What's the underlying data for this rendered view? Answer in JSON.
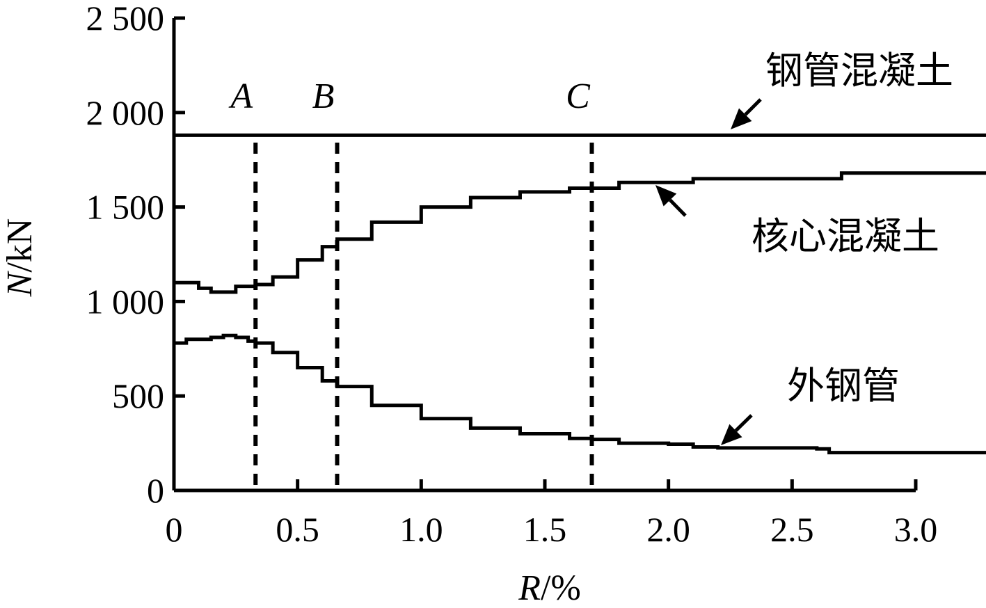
{
  "chart_data": {
    "type": "line",
    "xlabel": "R/%",
    "xlabel_italic": "R",
    "xlabel_rest": "/%",
    "ylabel": "N/kN",
    "ylabel_italic": "N",
    "ylabel_rest": "/kN",
    "xlim": [
      0,
      3.0
    ],
    "ylim": [
      0,
      2500
    ],
    "x_ticks": [
      0,
      0.5,
      1.0,
      1.5,
      2.0,
      2.5,
      3.0
    ],
    "x_tick_labels": [
      "0",
      "0.5",
      "1.0",
      "1.5",
      "2.0",
      "2.5",
      "3.0"
    ],
    "y_ticks": [
      0,
      500,
      1000,
      1500,
      2000,
      2500
    ],
    "y_tick_labels": [
      "0",
      "500",
      "1 000",
      "1 500",
      "2 000",
      "2 500"
    ],
    "grid": false,
    "dividers": [
      {
        "x": 0.33,
        "label": "A"
      },
      {
        "x": 0.66,
        "label": "B"
      },
      {
        "x": 1.69,
        "label": "C"
      }
    ],
    "series": [
      {
        "name": "钢管混凝土",
        "x": [
          0,
          3.3
        ],
        "y": [
          1880,
          1880
        ]
      },
      {
        "name": "核心混凝土",
        "x": [
          0,
          0.05,
          0.1,
          0.15,
          0.2,
          0.25,
          0.3,
          0.33,
          0.4,
          0.5,
          0.6,
          0.66,
          0.8,
          1.0,
          1.2,
          1.4,
          1.6,
          1.69,
          1.8,
          2.0,
          2.1,
          2.2,
          2.4,
          2.6,
          2.7,
          3.0,
          3.3
        ],
        "y": [
          1100,
          1100,
          1070,
          1050,
          1050,
          1080,
          1080,
          1090,
          1130,
          1220,
          1290,
          1330,
          1420,
          1500,
          1550,
          1580,
          1600,
          1600,
          1630,
          1630,
          1650,
          1650,
          1650,
          1650,
          1680,
          1680,
          1680
        ]
      },
      {
        "name": "外钢管",
        "x": [
          0,
          0.05,
          0.1,
          0.15,
          0.2,
          0.25,
          0.3,
          0.33,
          0.4,
          0.5,
          0.6,
          0.66,
          0.8,
          1.0,
          1.2,
          1.4,
          1.6,
          1.69,
          1.8,
          2.0,
          2.1,
          2.2,
          2.4,
          2.6,
          2.65,
          3.0,
          3.3
        ],
        "y": [
          780,
          800,
          800,
          810,
          820,
          810,
          790,
          780,
          730,
          650,
          580,
          550,
          450,
          380,
          330,
          300,
          275,
          270,
          250,
          245,
          230,
          225,
          225,
          220,
          200,
          200,
          200
        ]
      }
    ],
    "annotations": [
      {
        "series": "钢管混凝土",
        "text": "钢管混凝土"
      },
      {
        "series": "核心混凝土",
        "text": "核心混凝土"
      },
      {
        "series": "外钢管",
        "text": "外钢管"
      }
    ]
  }
}
